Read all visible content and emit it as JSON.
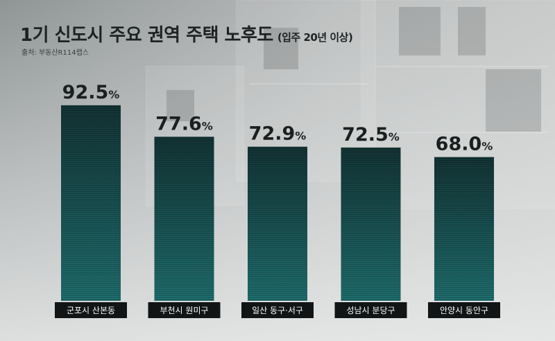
{
  "title": "1기 신도시 주요 권역 주택 노후도",
  "subtitle": "(입주 20년 이상)",
  "source": "출처: 부동산R114랩스",
  "chart_data": {
    "type": "bar",
    "title": "1기 신도시 주요 권역 주택 노후도",
    "subtitle": "(입주 20년 이상)",
    "categories": [
      "군포시 산본동",
      "부천시 원미구",
      "일산 동구·서구",
      "성남시 분당구",
      "안양시 동안구"
    ],
    "values": [
      92.5,
      77.6,
      72.9,
      72.5,
      68.0
    ],
    "value_labels": [
      "92.5",
      "77.6",
      "72.9",
      "72.5",
      "68.0"
    ],
    "unit": "%",
    "xlabel": "",
    "ylabel": "",
    "ylim": [
      0,
      100
    ],
    "grid": false,
    "legend": "none",
    "colors": {
      "bar_top": "#133334",
      "bar_bottom": "#1f6c6c",
      "label_box": "#121515"
    }
  }
}
